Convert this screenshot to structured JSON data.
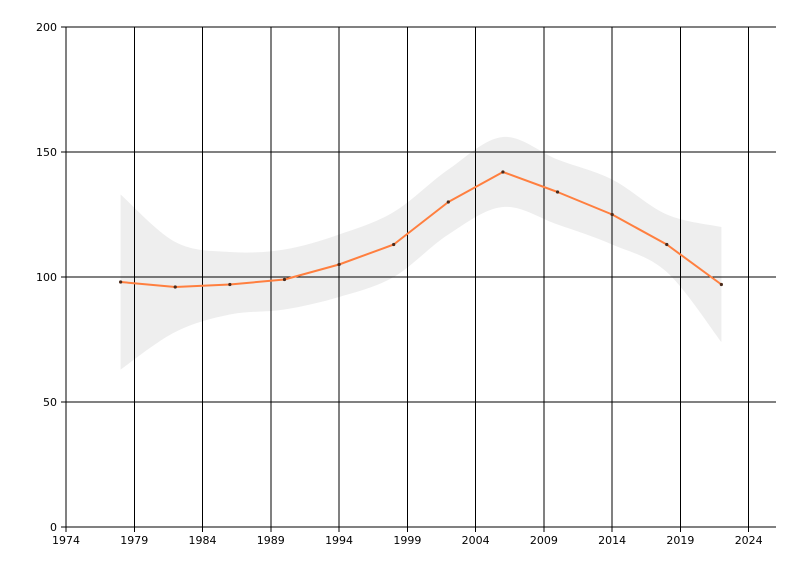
{
  "chart_data": {
    "type": "line",
    "title": "",
    "xlabel": "",
    "ylabel": "",
    "xlim": [
      1974,
      2026
    ],
    "ylim": [
      0,
      200
    ],
    "x_ticks": [
      1974,
      1979,
      1984,
      1989,
      1994,
      1999,
      2004,
      2009,
      2014,
      2019,
      2024
    ],
    "y_ticks": [
      0,
      50,
      100,
      150,
      200
    ],
    "grid": true,
    "legend": "none",
    "series": [
      {
        "x": [
          1978,
          1982,
          1986,
          1990,
          1994,
          1998,
          2002,
          2006,
          2010,
          2014,
          2018,
          2022
        ],
        "values": [
          98,
          96,
          97,
          99,
          105,
          113,
          130,
          142,
          134,
          125,
          113,
          97
        ],
        "color": "#ff7f3f"
      }
    ],
    "confidence_band": {
      "x": [
        1978,
        1982,
        1986,
        1990,
        1994,
        1998,
        2002,
        2006,
        2010,
        2014,
        2018,
        2022
      ],
      "upper": [
        133,
        114,
        110,
        111,
        117,
        126,
        143,
        156,
        147,
        139,
        125,
        120
      ],
      "lower": [
        63,
        78,
        85,
        87,
        92,
        100,
        117,
        128,
        121,
        113,
        102,
        74
      ],
      "color": "#eeeeee"
    },
    "colors": {
      "axis": "#000000",
      "grid": "#000000"
    }
  }
}
